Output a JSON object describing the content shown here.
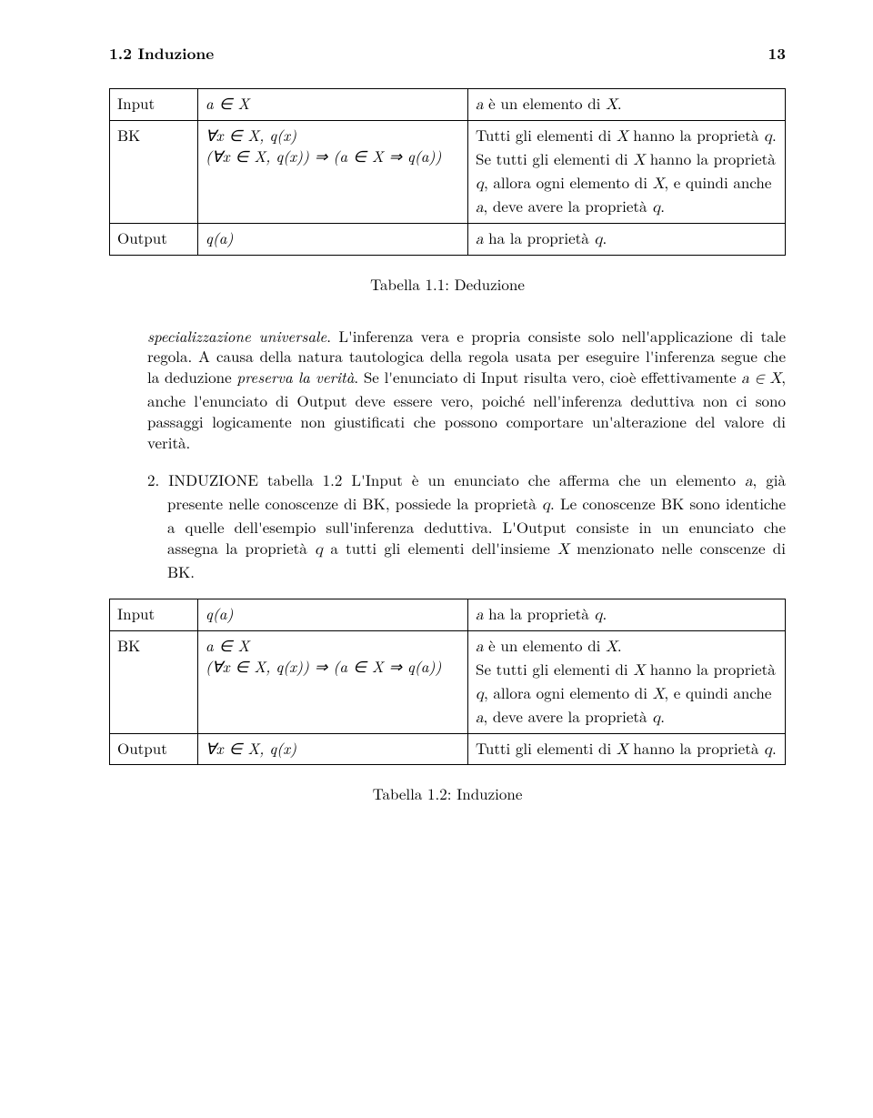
{
  "header": {
    "section": "1.2 Induzione",
    "page": "13"
  },
  "table1": {
    "r1c1": "Input",
    "r1c2": "a ∈ X",
    "r1c3": "a è un elemento di X.",
    "r2c1": "BK",
    "r2c2a": "∀x ∈ X, q(x)",
    "r2c2b": "(∀x ∈ X, q(x)) ⇒ (a ∈ X ⇒ q(a))",
    "r2c3a": "Tutti gli elementi di X hanno la proprietà q.",
    "r2c3b": "Se tutti gli elementi di X hanno la proprietà q, allora ogni elemento di X, e quindi anche a, deve avere la proprietà q.",
    "r3c1": "Output",
    "r3c2": "q(a)",
    "r3c3": "a ha la proprietà q."
  },
  "caption1": "Tabella 1.1: Deduzione",
  "para1a": "specializzazione universale",
  "para1b": ". L'inferenza vera e propria consiste solo nell'applicazione di tale regola. A causa della natura tautologica della regola usata per eseguire l'inferenza segue che la deduzione ",
  "para1c": "preserva la verità",
  "para1d": ". Se l'enunciato di Input risulta vero, cioè effettivamente ",
  "para1e": "a ∈ X",
  "para1f": ", anche l'enunciato di Output deve essere vero, poiché nell'inferenza deduttiva non ci sono passaggi logicamente non giustificati che possono comportare un'alterazione del valore di verità.",
  "item2_num": "2. ",
  "para2a": "INDUZIONE tabella 1.2 L'Input è un enunciato che afferma che un elemento ",
  "para2_a": "a",
  "para2b": ", già presente nelle conoscenze di BK, possiede la proprietà ",
  "para2_q": "q",
  "para2c": ". Le conoscenze BK sono identiche a quelle dell'esempio sull'inferenza deduttiva. L'Output consiste in un enunciato che assegna la proprietà ",
  "para2_q2": "q",
  "para2d": " a tutti gli elementi dell'insieme ",
  "para2_X": "X",
  "para2e": " menzionato nelle conscenze di BK.",
  "table2": {
    "r1c1": "Input",
    "r1c2": "q(a)",
    "r1c3": "a ha la proprietà q.",
    "r2c1": "BK",
    "r2c2a": "a ∈ X",
    "r2c2b": "(∀x ∈ X, q(x)) ⇒ (a ∈ X ⇒ q(a))",
    "r2c3a": "a è un elemento di X.",
    "r2c3b": "Se tutti gli elementi di X hanno la proprietà q, allora ogni elemento di X, e quindi anche a, deve avere la proprietà q.",
    "r3c1": "Output",
    "r3c2": "∀x ∈ X, q(x)",
    "r3c3": "Tutti gli elementi di X hanno la proprietà q."
  },
  "caption2": "Tabella 1.2: Induzione"
}
